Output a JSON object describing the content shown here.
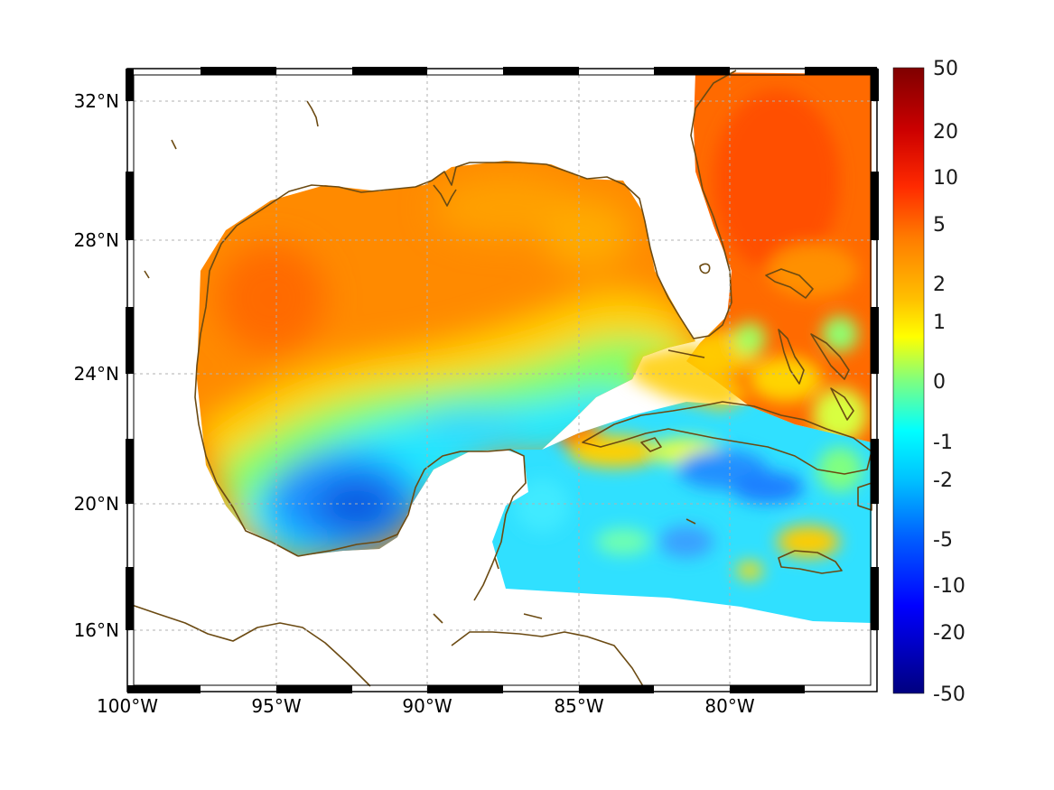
{
  "chart_data": {
    "type": "heatmap",
    "title": "",
    "xlabel": "",
    "ylabel": "",
    "x_ticks": [
      "100°W",
      "95°W",
      "90°W",
      "85°W",
      "80°W"
    ],
    "y_ticks": [
      "32°N",
      "28°N",
      "24°N",
      "20°N",
      "16°N"
    ],
    "x_range_deg": [
      -100,
      -75.2
    ],
    "y_range_deg": [
      14.1,
      33.0
    ],
    "grid": true,
    "grid_style": "dotted",
    "frame": "black-and-white checkered border",
    "coastline_color": "#6b4a12",
    "colorbar": {
      "position": "right",
      "scale": "nonlinear (symmetric-log style)",
      "tick_labels": [
        "50",
        "20",
        "10",
        "5",
        "2",
        "1",
        "0",
        "-1",
        "-2",
        "-5",
        "-10",
        "-20",
        "-50"
      ],
      "range": [
        -50,
        50
      ],
      "colormap": [
        "#7f0000",
        "#ff0000",
        "#ff7f00",
        "#ffff00",
        "#7fff7f",
        "#00ffff",
        "#007fff",
        "#0000ff",
        "#00007f"
      ]
    },
    "value_regions": [
      {
        "region": "northern and western Gulf of Mexico",
        "approx_value": 5
      },
      {
        "region": "Atlantic off Florida / Georgia",
        "approx_value": 8
      },
      {
        "region": "Loop Current / central Gulf band",
        "approx_value": 1
      },
      {
        "region": "Bay of Campeche",
        "approx_value": -8
      },
      {
        "region": "southern Gulf and western Caribbean",
        "approx_value": -2
      },
      {
        "region": "Caribbean south of Cuba",
        "approx_value": -4
      },
      {
        "region": "Bahamas / Florida Straits",
        "approx_value": 2
      }
    ]
  }
}
